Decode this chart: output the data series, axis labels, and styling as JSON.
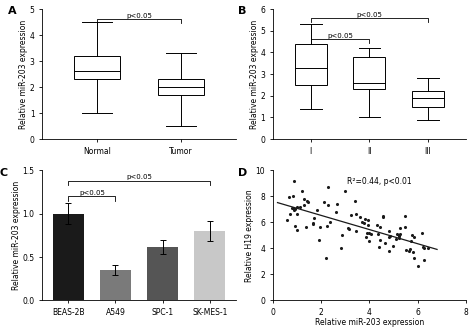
{
  "panel_A": {
    "label": "A",
    "ylabel": "Relative miR-203 expression",
    "xtick_labels": [
      "Normal",
      "Tumor"
    ],
    "ylim": [
      0,
      5
    ],
    "yticks": [
      0,
      1,
      2,
      3,
      4,
      5
    ],
    "boxes": [
      {
        "med": 2.6,
        "q1": 2.3,
        "q3": 3.2,
        "whislo": 1.0,
        "whishi": 4.5
      },
      {
        "med": 2.0,
        "q1": 1.7,
        "q3": 2.3,
        "whislo": 0.5,
        "whishi": 3.3
      }
    ],
    "sig_pairs": [
      [
        0,
        1,
        "p<0.05"
      ]
    ],
    "sig_y": 4.6
  },
  "panel_B": {
    "label": "B",
    "ylabel": "Relative miR-203 expression",
    "xtick_labels": [
      "I",
      "II",
      "III"
    ],
    "ylim": [
      0,
      6
    ],
    "yticks": [
      0,
      1,
      2,
      3,
      4,
      5,
      6
    ],
    "boxes": [
      {
        "med": 3.3,
        "q1": 2.5,
        "q3": 4.4,
        "whislo": 1.4,
        "whishi": 5.3
      },
      {
        "med": 2.6,
        "q1": 2.3,
        "q3": 3.8,
        "whislo": 1.0,
        "whishi": 4.2
      },
      {
        "med": 1.9,
        "q1": 1.5,
        "q3": 2.2,
        "whislo": 0.9,
        "whishi": 2.8
      }
    ],
    "sig_pairs": [
      [
        0,
        1,
        "p<0.05"
      ],
      [
        0,
        2,
        "p<0.05"
      ]
    ],
    "sig_y1": 4.6,
    "sig_y2": 5.6
  },
  "panel_C": {
    "label": "C",
    "ylabel": "Relative miR-203 expression",
    "xtick_labels": [
      "BEAS-2B",
      "A549",
      "SPC-1",
      "SK-MES-1"
    ],
    "ylim": [
      0,
      1.5
    ],
    "yticks": [
      0.0,
      0.5,
      1.0,
      1.5
    ],
    "bars": [
      1.0,
      0.35,
      0.62,
      0.8
    ],
    "errors": [
      0.12,
      0.06,
      0.08,
      0.12
    ],
    "colors": [
      "#1a1a1a",
      "#7a7a7a",
      "#555555",
      "#c8c8c8"
    ],
    "sig_y1": 1.2,
    "sig_y2": 1.38,
    "sig_drop": 0.05,
    "sig_labels": [
      "p<0.05",
      "p<0.05"
    ]
  },
  "panel_D": {
    "label": "D",
    "xlabel": "Relative miR-203 expression",
    "ylabel": "Relative H19 expression",
    "xlim": [
      0,
      8
    ],
    "ylim": [
      0,
      10
    ],
    "xticks": [
      0,
      2,
      4,
      6,
      8
    ],
    "yticks": [
      0,
      2,
      4,
      6,
      8,
      10
    ],
    "annotation": "R²=0.44, p<0.01",
    "scatter_color": "#1a1a1a",
    "line_color": "#1a1a1a",
    "n_points": 90,
    "x_range": [
      0.5,
      6.5
    ],
    "y_intercept": 7.5,
    "slope": -0.55,
    "noise": 0.9,
    "seed": 17
  }
}
